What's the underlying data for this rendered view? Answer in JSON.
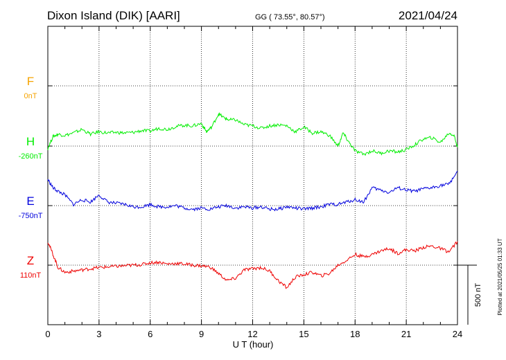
{
  "header": {
    "title": "Dixon Island (DIK)  [AARI]",
    "coords": "GG ( 73.55°,  80.57°)",
    "date": "2021/04/24"
  },
  "plotted_note": "Plotted at 2021/05/25 01:33 UT",
  "chart_data": {
    "type": "line",
    "xlabel": "U T (hour)",
    "xlim": [
      0,
      24
    ],
    "xticks": [
      0,
      3,
      6,
      9,
      12,
      15,
      18,
      21,
      24
    ],
    "grid": true,
    "scale_bar": "500 nT",
    "scale_bar_nT": 500,
    "series": [
      {
        "name": "F",
        "baseline_label": "0nT",
        "color": "#f5a300",
        "x": [],
        "y": []
      },
      {
        "name": "H",
        "baseline_label": "-260nT",
        "color": "#00ee00",
        "x": [
          0,
          0.3,
          0.6,
          1.0,
          1.5,
          2.0,
          2.5,
          3.0,
          3.5,
          4.0,
          4.5,
          5.0,
          5.5,
          6.0,
          6.5,
          7.0,
          7.5,
          8.0,
          8.5,
          9.0,
          9.3,
          9.6,
          10.0,
          10.3,
          10.6,
          11.0,
          11.5,
          12.0,
          12.5,
          13.0,
          13.5,
          14.0,
          14.5,
          15.0,
          15.5,
          16.0,
          16.5,
          17.0,
          17.3,
          17.6,
          18.0,
          18.5,
          19.0,
          19.5,
          20.0,
          20.5,
          21.0,
          21.5,
          22.0,
          22.5,
          23.0,
          23.5,
          23.8,
          24.0
        ],
        "y": [
          -280,
          -180,
          -160,
          -170,
          -150,
          -120,
          -160,
          -140,
          -150,
          -145,
          -150,
          -145,
          -130,
          -135,
          -110,
          -120,
          -95,
          -85,
          -90,
          -70,
          -140,
          -100,
          10,
          -20,
          -40,
          -40,
          -80,
          -90,
          -110,
          -90,
          -80,
          -90,
          -140,
          -100,
          -150,
          -140,
          -170,
          -260,
          -150,
          -220,
          -300,
          -330,
          -300,
          -320,
          -300,
          -310,
          -290,
          -250,
          -200,
          -190,
          -230,
          -150,
          -170,
          -270
        ]
      },
      {
        "name": "E",
        "baseline_label": "-750nT",
        "color": "#0000dd",
        "x": [
          0,
          0.3,
          0.6,
          1.0,
          1.5,
          2.0,
          2.5,
          3.0,
          3.5,
          4.0,
          4.5,
          5.0,
          5.5,
          6.0,
          6.5,
          7.0,
          7.5,
          8.0,
          8.5,
          9.0,
          9.5,
          10.0,
          10.5,
          11.0,
          11.5,
          12.0,
          12.5,
          13.0,
          13.5,
          14.0,
          14.5,
          15.0,
          15.5,
          16.0,
          16.5,
          17.0,
          17.5,
          18.0,
          18.5,
          19.0,
          19.5,
          20.0,
          20.5,
          21.0,
          21.5,
          22.0,
          22.5,
          23.0,
          23.5,
          24.0
        ],
        "y": [
          -530,
          -600,
          -630,
          -660,
          -740,
          -700,
          -720,
          -660,
          -720,
          -730,
          -740,
          -760,
          -760,
          -740,
          -760,
          -760,
          -750,
          -770,
          -780,
          -770,
          -780,
          -760,
          -750,
          -770,
          -760,
          -770,
          -760,
          -780,
          -780,
          -760,
          -770,
          -780,
          -770,
          -760,
          -740,
          -740,
          -720,
          -700,
          -720,
          -600,
          -620,
          -640,
          -600,
          -620,
          -630,
          -610,
          -600,
          -580,
          -570,
          -460
        ]
      },
      {
        "name": "Z",
        "baseline_label": "110nT",
        "color": "#ee0000",
        "x": [
          0,
          0.3,
          0.6,
          1.0,
          1.5,
          2.0,
          2.5,
          3.0,
          3.5,
          4.0,
          4.5,
          5.0,
          5.5,
          6.0,
          6.5,
          7.0,
          7.5,
          8.0,
          8.5,
          9.0,
          9.5,
          10.0,
          10.5,
          11.0,
          11.5,
          12.0,
          12.5,
          13.0,
          13.5,
          14.0,
          14.5,
          15.0,
          15.5,
          16.0,
          16.5,
          17.0,
          17.5,
          18.0,
          18.5,
          19.0,
          19.5,
          20.0,
          20.5,
          21.0,
          21.5,
          22.0,
          22.5,
          23.0,
          23.5,
          24.0
        ],
        "y": [
          310,
          200,
          90,
          50,
          60,
          70,
          80,
          90,
          95,
          100,
          105,
          110,
          115,
          130,
          135,
          120,
          125,
          120,
          110,
          105,
          95,
          40,
          -20,
          0,
          70,
          80,
          90,
          60,
          -20,
          -80,
          10,
          30,
          50,
          20,
          40,
          110,
          150,
          200,
          180,
          200,
          230,
          250,
          210,
          240,
          230,
          260,
          270,
          250,
          220,
          310
        ]
      }
    ]
  }
}
